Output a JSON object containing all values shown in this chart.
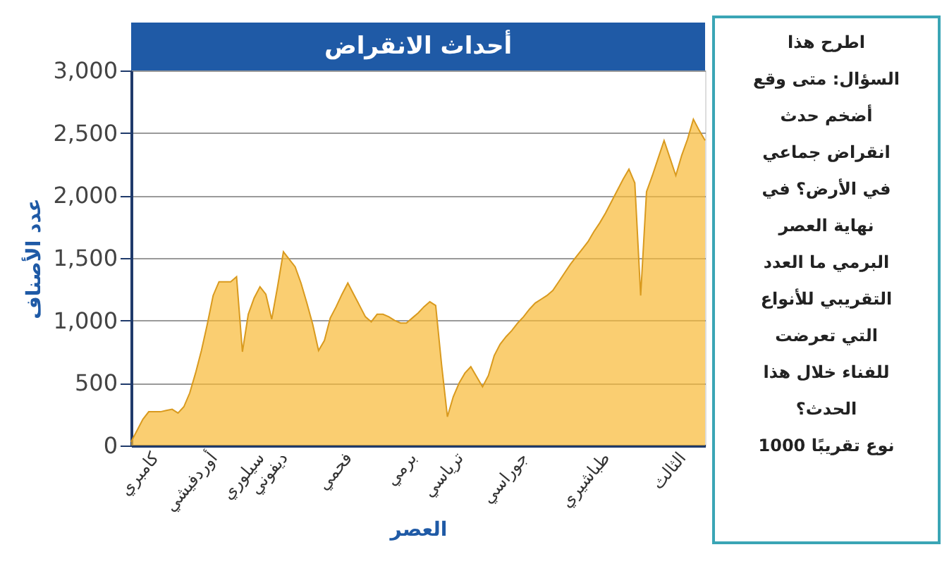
{
  "chart_data": {
    "type": "area",
    "title": "أحداث الانقراض",
    "xlabel": "العصر",
    "ylabel": "عدد الأصناف",
    "categories": [
      null,
      null,
      null,
      null,
      "كامبري",
      null,
      null,
      null,
      null,
      null,
      null,
      null,
      null,
      null,
      "أوردفيشي",
      null,
      null,
      null,
      null,
      null,
      null,
      null,
      "سيلوري",
      null,
      null,
      null,
      "ديفوني",
      null,
      null,
      null,
      null,
      null,
      null,
      null,
      null,
      null,
      null,
      "فحمي",
      null,
      null,
      null,
      null,
      null,
      null,
      null,
      null,
      null,
      null,
      "برمي",
      null,
      null,
      null,
      null,
      null,
      null,
      null,
      "ترياسي",
      null,
      null,
      null,
      null,
      null,
      null,
      null,
      null,
      null,
      null,
      "جوراسي",
      null,
      null,
      null,
      null,
      null,
      null,
      null,
      null,
      null,
      null,
      null,
      null,
      null,
      "طباشيري",
      null,
      null,
      null,
      null,
      null,
      null,
      null,
      null,
      null,
      null,
      null,
      null,
      "الثالث",
      null,
      null,
      null,
      null
    ],
    "series": [
      {
        "color": "#f8b935",
        "values": [
          30,
          120,
          210,
          270,
          270,
          270,
          280,
          290,
          260,
          310,
          420,
          580,
          760,
          970,
          1200,
          1310,
          1310,
          1310,
          1350,
          750,
          1050,
          1180,
          1270,
          1210,
          1010,
          1270,
          1550,
          1490,
          1430,
          1300,
          1140,
          970,
          760,
          840,
          1020,
          1110,
          1210,
          1300,
          1210,
          1120,
          1030,
          990,
          1050,
          1050,
          1030,
          1000,
          980,
          980,
          1020,
          1060,
          1110,
          1150,
          1120,
          650,
          230,
          390,
          500,
          580,
          630,
          550,
          470,
          560,
          720,
          810,
          870,
          920,
          980,
          1030,
          1090,
          1140,
          1170,
          1200,
          1240,
          1310,
          1380,
          1450,
          1510,
          1570,
          1630,
          1710,
          1780,
          1860,
          1950,
          2040,
          2130,
          2210,
          2100,
          1200,
          2030,
          2160,
          2300,
          2440,
          2300,
          2160,
          2320,
          2450,
          2610,
          2520,
          2440
        ]
      }
    ],
    "ylim": [
      0,
      3000
    ],
    "yticks": [
      {
        "value": 0,
        "label": "0"
      },
      {
        "value": 500,
        "label": "500"
      },
      {
        "value": 1000,
        "label": "1,000"
      },
      {
        "value": 1500,
        "label": "1,500"
      },
      {
        "value": 2000,
        "label": "2,000"
      },
      {
        "value": 2500,
        "label": "2,500"
      },
      {
        "value": 3000,
        "label": "3,000"
      }
    ],
    "grid": "y",
    "annotations": [
      "اطرح هذا",
      "السؤال: متى وقع",
      "أضخم حدث",
      "انقراض جماعي",
      "في الأرض؟ في",
      "نهاية العصر",
      "البرمي ما العدد",
      "التقريبي للأنواع",
      "التي تعرضت",
      "للفناء خلال هذا",
      "الحدث؟",
      "1000 نوع تقريبًا"
    ]
  }
}
